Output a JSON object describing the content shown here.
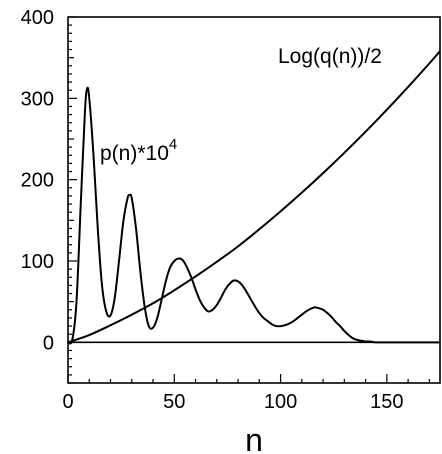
{
  "chart_data": {
    "type": "line",
    "title": "",
    "xlabel": "n",
    "ylabel": "",
    "xlim": [
      0,
      175
    ],
    "ylim": [
      -50,
      400
    ],
    "x_ticks": [
      0,
      50,
      100,
      150
    ],
    "y_ticks": [
      0,
      100,
      200,
      300,
      400
    ],
    "x_tick_labels": [
      "0",
      "50",
      "100",
      "150"
    ],
    "y_tick_labels": [
      "0",
      "100",
      "200",
      "300",
      "400"
    ],
    "grid": false,
    "legend": "none",
    "annotations": {
      "p_label": "p(n)*10",
      "p_label_sup": "4",
      "q_label": "Log(q(n))/2"
    },
    "series": [
      {
        "x": [
          0,
          2,
          4,
          6,
          8,
          9,
          10,
          12,
          14,
          16,
          18,
          20,
          22,
          24,
          26,
          28,
          29,
          30,
          32,
          34,
          36,
          38,
          40,
          42,
          44,
          46,
          48,
          50,
          52,
          54,
          56,
          58,
          60,
          62,
          64,
          66,
          68,
          70,
          72,
          74,
          76,
          78,
          80,
          82,
          84,
          86,
          88,
          90,
          92,
          94,
          96,
          98,
          100,
          102,
          104,
          106,
          108,
          110,
          112,
          114,
          116,
          118,
          120,
          122,
          124,
          126,
          128,
          130,
          132,
          134,
          136,
          138,
          140,
          142,
          145,
          150,
          155,
          160,
          165,
          170,
          175
        ],
        "y": [
          0,
          3,
          50,
          170,
          285,
          312,
          300,
          230,
          140,
          70,
          38,
          33,
          55,
          100,
          148,
          177,
          181,
          177,
          140,
          88,
          45,
          20,
          18,
          30,
          52,
          75,
          92,
          100,
          103,
          101,
          92,
          80,
          65,
          52,
          43,
          38,
          40,
          46,
          55,
          65,
          72,
          76,
          75,
          70,
          62,
          53,
          44,
          36,
          30,
          26,
          22,
          20,
          20,
          21,
          23,
          26,
          30,
          34,
          38,
          41,
          43,
          42,
          40,
          36,
          31,
          25,
          20,
          14,
          9,
          5,
          3,
          2,
          1,
          1,
          0,
          0,
          0,
          0,
          0,
          0,
          0
        ]
      },
      {
        "x": [
          0,
          10,
          20,
          30,
          40,
          50,
          60,
          70,
          80,
          90,
          100,
          110,
          120,
          130,
          140,
          150,
          160,
          170,
          175
        ],
        "y": [
          0,
          9,
          21,
          34,
          48,
          64,
          81,
          99,
          118,
          139,
          161,
          184,
          208,
          233,
          259,
          286,
          314,
          343,
          358
        ]
      }
    ]
  }
}
